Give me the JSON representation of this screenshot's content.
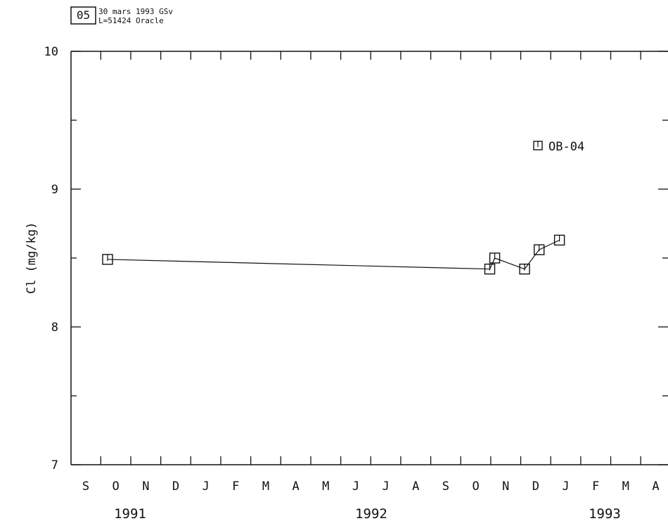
{
  "header": {
    "badge": "05",
    "line1": "30 mars 1993  GSv",
    "line2": "L=51424  Oracle"
  },
  "chart_data": {
    "type": "line",
    "ylabel": "Cl  (mg/kg)",
    "ylim": [
      7,
      10
    ],
    "y_ticks": [
      "7",
      "8",
      "9",
      "10"
    ],
    "x_start": "1991-09",
    "month_labels": [
      "S",
      "O",
      "N",
      "D",
      "J",
      "F",
      "M",
      "A",
      "M",
      "J",
      "J",
      "A",
      "S",
      "O",
      "N",
      "D",
      "J",
      "F",
      "M",
      "A"
    ],
    "year_labels": [
      "1991",
      "1992",
      "1993"
    ],
    "grid": false,
    "legend_position": "top-right",
    "series": [
      {
        "name": "OB-04",
        "marker": "square",
        "points": [
          {
            "x": "1991-10-08",
            "y": 8.49
          },
          {
            "x": "1992-10-31",
            "y": 8.42
          },
          {
            "x": "1992-11-05",
            "y": 8.5
          },
          {
            "x": "1992-12-05",
            "y": 8.42
          },
          {
            "x": "1992-12-20",
            "y": 8.56
          },
          {
            "x": "1993-01-10",
            "y": 8.63
          }
        ]
      }
    ]
  }
}
